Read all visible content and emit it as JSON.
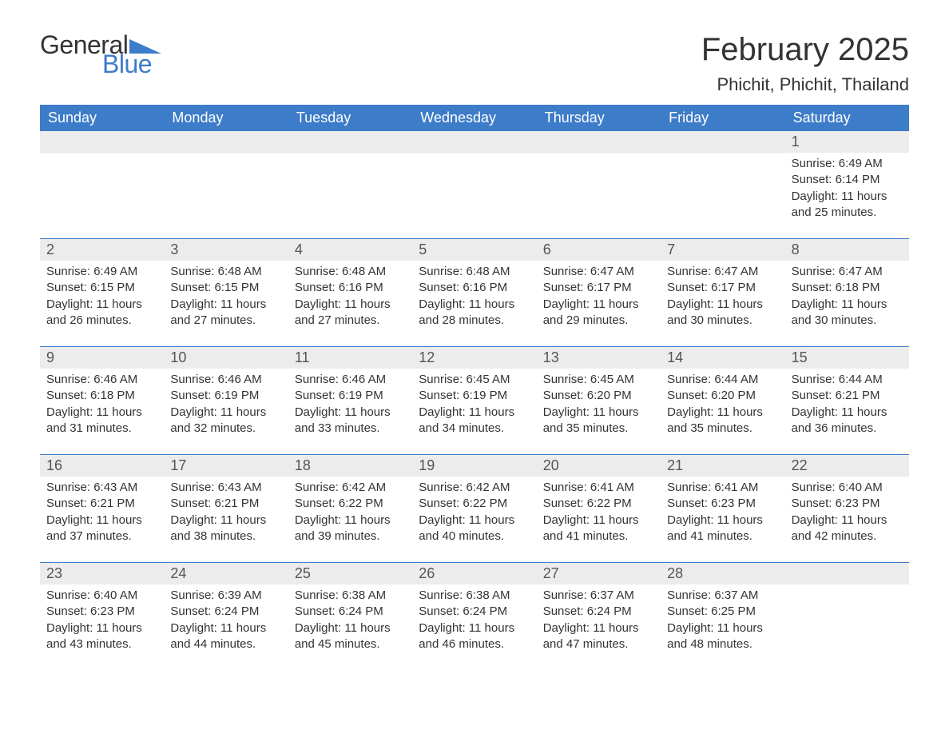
{
  "brand": {
    "general": "General",
    "blue": "Blue"
  },
  "colors": {
    "accent": "#3d7cc9",
    "header_bg": "#3d7cc9",
    "row_stripe": "#ececec",
    "text": "#333333",
    "bg": "#ffffff"
  },
  "title": "February 2025",
  "location": "Phichit, Phichit, Thailand",
  "calendar": {
    "weekdays": [
      "Sunday",
      "Monday",
      "Tuesday",
      "Wednesday",
      "Thursday",
      "Friday",
      "Saturday"
    ],
    "weeks": [
      [
        null,
        null,
        null,
        null,
        null,
        null,
        {
          "n": "1",
          "sunrise": "Sunrise: 6:49 AM",
          "sunset": "Sunset: 6:14 PM",
          "day1": "Daylight: 11 hours",
          "day2": "and 25 minutes."
        }
      ],
      [
        {
          "n": "2",
          "sunrise": "Sunrise: 6:49 AM",
          "sunset": "Sunset: 6:15 PM",
          "day1": "Daylight: 11 hours",
          "day2": "and 26 minutes."
        },
        {
          "n": "3",
          "sunrise": "Sunrise: 6:48 AM",
          "sunset": "Sunset: 6:15 PM",
          "day1": "Daylight: 11 hours",
          "day2": "and 27 minutes."
        },
        {
          "n": "4",
          "sunrise": "Sunrise: 6:48 AM",
          "sunset": "Sunset: 6:16 PM",
          "day1": "Daylight: 11 hours",
          "day2": "and 27 minutes."
        },
        {
          "n": "5",
          "sunrise": "Sunrise: 6:48 AM",
          "sunset": "Sunset: 6:16 PM",
          "day1": "Daylight: 11 hours",
          "day2": "and 28 minutes."
        },
        {
          "n": "6",
          "sunrise": "Sunrise: 6:47 AM",
          "sunset": "Sunset: 6:17 PM",
          "day1": "Daylight: 11 hours",
          "day2": "and 29 minutes."
        },
        {
          "n": "7",
          "sunrise": "Sunrise: 6:47 AM",
          "sunset": "Sunset: 6:17 PM",
          "day1": "Daylight: 11 hours",
          "day2": "and 30 minutes."
        },
        {
          "n": "8",
          "sunrise": "Sunrise: 6:47 AM",
          "sunset": "Sunset: 6:18 PM",
          "day1": "Daylight: 11 hours",
          "day2": "and 30 minutes."
        }
      ],
      [
        {
          "n": "9",
          "sunrise": "Sunrise: 6:46 AM",
          "sunset": "Sunset: 6:18 PM",
          "day1": "Daylight: 11 hours",
          "day2": "and 31 minutes."
        },
        {
          "n": "10",
          "sunrise": "Sunrise: 6:46 AM",
          "sunset": "Sunset: 6:19 PM",
          "day1": "Daylight: 11 hours",
          "day2": "and 32 minutes."
        },
        {
          "n": "11",
          "sunrise": "Sunrise: 6:46 AM",
          "sunset": "Sunset: 6:19 PM",
          "day1": "Daylight: 11 hours",
          "day2": "and 33 minutes."
        },
        {
          "n": "12",
          "sunrise": "Sunrise: 6:45 AM",
          "sunset": "Sunset: 6:19 PM",
          "day1": "Daylight: 11 hours",
          "day2": "and 34 minutes."
        },
        {
          "n": "13",
          "sunrise": "Sunrise: 6:45 AM",
          "sunset": "Sunset: 6:20 PM",
          "day1": "Daylight: 11 hours",
          "day2": "and 35 minutes."
        },
        {
          "n": "14",
          "sunrise": "Sunrise: 6:44 AM",
          "sunset": "Sunset: 6:20 PM",
          "day1": "Daylight: 11 hours",
          "day2": "and 35 minutes."
        },
        {
          "n": "15",
          "sunrise": "Sunrise: 6:44 AM",
          "sunset": "Sunset: 6:21 PM",
          "day1": "Daylight: 11 hours",
          "day2": "and 36 minutes."
        }
      ],
      [
        {
          "n": "16",
          "sunrise": "Sunrise: 6:43 AM",
          "sunset": "Sunset: 6:21 PM",
          "day1": "Daylight: 11 hours",
          "day2": "and 37 minutes."
        },
        {
          "n": "17",
          "sunrise": "Sunrise: 6:43 AM",
          "sunset": "Sunset: 6:21 PM",
          "day1": "Daylight: 11 hours",
          "day2": "and 38 minutes."
        },
        {
          "n": "18",
          "sunrise": "Sunrise: 6:42 AM",
          "sunset": "Sunset: 6:22 PM",
          "day1": "Daylight: 11 hours",
          "day2": "and 39 minutes."
        },
        {
          "n": "19",
          "sunrise": "Sunrise: 6:42 AM",
          "sunset": "Sunset: 6:22 PM",
          "day1": "Daylight: 11 hours",
          "day2": "and 40 minutes."
        },
        {
          "n": "20",
          "sunrise": "Sunrise: 6:41 AM",
          "sunset": "Sunset: 6:22 PM",
          "day1": "Daylight: 11 hours",
          "day2": "and 41 minutes."
        },
        {
          "n": "21",
          "sunrise": "Sunrise: 6:41 AM",
          "sunset": "Sunset: 6:23 PM",
          "day1": "Daylight: 11 hours",
          "day2": "and 41 minutes."
        },
        {
          "n": "22",
          "sunrise": "Sunrise: 6:40 AM",
          "sunset": "Sunset: 6:23 PM",
          "day1": "Daylight: 11 hours",
          "day2": "and 42 minutes."
        }
      ],
      [
        {
          "n": "23",
          "sunrise": "Sunrise: 6:40 AM",
          "sunset": "Sunset: 6:23 PM",
          "day1": "Daylight: 11 hours",
          "day2": "and 43 minutes."
        },
        {
          "n": "24",
          "sunrise": "Sunrise: 6:39 AM",
          "sunset": "Sunset: 6:24 PM",
          "day1": "Daylight: 11 hours",
          "day2": "and 44 minutes."
        },
        {
          "n": "25",
          "sunrise": "Sunrise: 6:38 AM",
          "sunset": "Sunset: 6:24 PM",
          "day1": "Daylight: 11 hours",
          "day2": "and 45 minutes."
        },
        {
          "n": "26",
          "sunrise": "Sunrise: 6:38 AM",
          "sunset": "Sunset: 6:24 PM",
          "day1": "Daylight: 11 hours",
          "day2": "and 46 minutes."
        },
        {
          "n": "27",
          "sunrise": "Sunrise: 6:37 AM",
          "sunset": "Sunset: 6:24 PM",
          "day1": "Daylight: 11 hours",
          "day2": "and 47 minutes."
        },
        {
          "n": "28",
          "sunrise": "Sunrise: 6:37 AM",
          "sunset": "Sunset: 6:25 PM",
          "day1": "Daylight: 11 hours",
          "day2": "and 48 minutes."
        },
        null
      ]
    ]
  }
}
